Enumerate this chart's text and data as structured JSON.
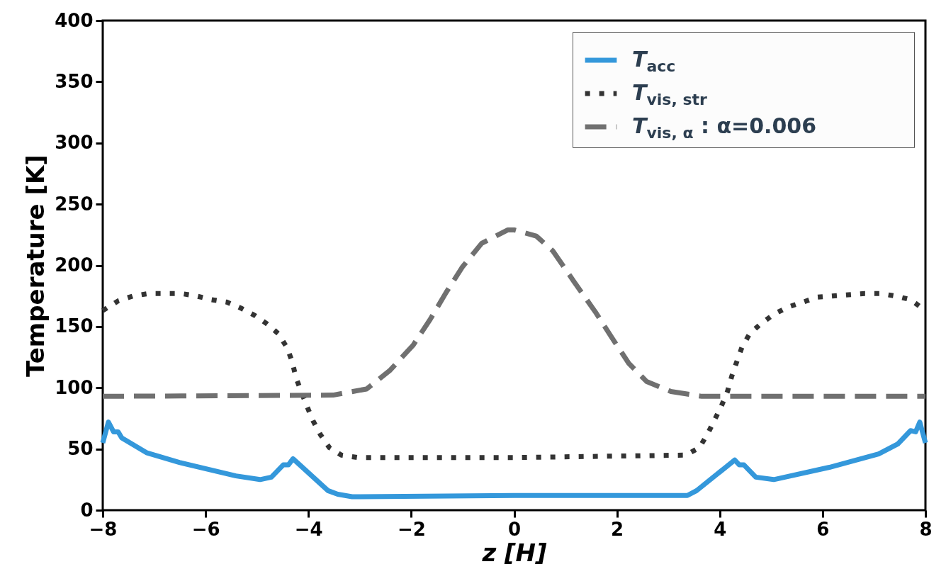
{
  "chart_data": {
    "type": "line",
    "xlabel": "z [H]",
    "ylabel": "Temperature [K]",
    "xlim": [
      -8,
      8
    ],
    "ylim": [
      0,
      400
    ],
    "xticks": [
      -8,
      -6,
      -4,
      -2,
      0,
      2,
      4,
      6,
      8
    ],
    "yticks": [
      0,
      50,
      100,
      150,
      200,
      250,
      300,
      350,
      400
    ],
    "grid": false,
    "legend": "top right",
    "marker": "none",
    "series": [
      {
        "name": "T$_{acc}$",
        "color": "#3498db",
        "line_style": "solid",
        "x": [
          -8,
          -7.89,
          -7.79,
          -7.7,
          -7.63,
          -7.15,
          -6.51,
          -5.41,
          -4.94,
          -4.72,
          -4.49,
          -4.39,
          -4.3,
          -3.62,
          -3.43,
          -3.15,
          0,
          3.37,
          3.55,
          4.29,
          4.38,
          4.47,
          4.7,
          5.05,
          6.13,
          7.09,
          7.46,
          7.71,
          7.81,
          7.89,
          8
        ],
        "values": [
          55,
          72,
          64,
          64,
          59,
          47,
          39,
          28,
          25,
          27,
          37,
          37,
          42,
          16,
          13,
          11,
          12,
          12,
          16,
          41,
          37,
          37,
          27,
          25,
          35,
          46,
          54,
          65,
          64,
          72,
          55
        ]
      },
      {
        "name": "T$_{vis, str}$",
        "color": "#333333",
        "line_style": "dotted",
        "x": [
          -8,
          -7.7,
          -7.41,
          -7.1,
          -6.8,
          -6.48,
          -6.18,
          -5.89,
          -5.59,
          -5.31,
          -5.04,
          -4.8,
          -4.58,
          -4.42,
          -4.32,
          -4.24,
          -4.14,
          -4.03,
          -3.91,
          -3.77,
          -3.59,
          -3.36,
          -3.04,
          0,
          3.34,
          3.6,
          3.76,
          3.89,
          4.03,
          4.15,
          4.23,
          4.32,
          4.43,
          4.58,
          4.79,
          5.05,
          5.33,
          5.62,
          5.89,
          6.19,
          6.5,
          6.82,
          7.12,
          7.41,
          7.71,
          8
        ],
        "values": [
          163,
          171,
          175,
          177,
          177,
          177,
          175,
          172,
          170,
          165,
          159,
          152,
          144,
          133,
          122,
          108,
          97,
          85,
          73,
          62,
          51,
          45,
          43,
          43,
          45,
          51,
          62,
          73,
          85,
          97,
          109,
          120,
          133,
          144,
          152,
          160,
          166,
          170,
          174,
          175,
          176,
          177,
          177,
          175,
          172,
          163
        ]
      },
      {
        "name": "T$_{vis, α}$ : α=0.006",
        "color": "#707070",
        "line_style": "dashed",
        "x": [
          -8,
          -3.52,
          -2.87,
          -2.42,
          -1.96,
          -1.63,
          -1.32,
          -1.0,
          -0.63,
          -0.12,
          0,
          0.43,
          0.75,
          1.16,
          1.58,
          1.9,
          2.23,
          2.58,
          3.05,
          3.65,
          8
        ],
        "values": [
          93,
          94,
          99,
          114,
          135,
          156,
          178,
          199,
          218,
          229,
          229,
          224,
          212,
          187,
          162,
          141,
          120,
          105,
          97,
          93,
          93
        ]
      }
    ]
  }
}
